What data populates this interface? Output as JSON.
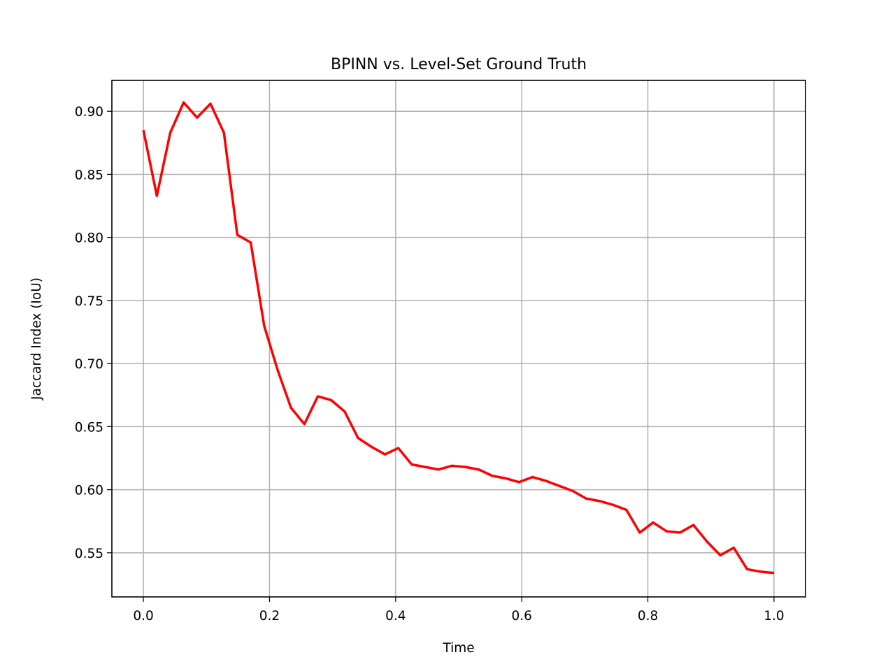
{
  "chart_data": {
    "type": "line",
    "title": "BPINN vs. Level-Set Ground Truth",
    "xlabel": "Time",
    "ylabel": "Jaccard Index (IoU)",
    "xlim": [
      -0.05,
      1.05
    ],
    "ylim": [
      0.515,
      0.9245
    ],
    "xticks": [
      0.0,
      0.2,
      0.4,
      0.6,
      0.8,
      1.0
    ],
    "xtick_labels": [
      "0.0",
      "0.2",
      "0.4",
      "0.6",
      "0.8",
      "1.0"
    ],
    "yticks": [
      0.55,
      0.6,
      0.65,
      0.7,
      0.75,
      0.8,
      0.85,
      0.9
    ],
    "ytick_labels": [
      "0.55",
      "0.60",
      "0.65",
      "0.70",
      "0.75",
      "0.80",
      "0.85",
      "0.90"
    ],
    "grid": true,
    "legend": "none",
    "series": [
      {
        "color": "#ff0000",
        "x": [
          0.0,
          0.0213,
          0.0426,
          0.0638,
          0.0851,
          0.1064,
          0.1277,
          0.1489,
          0.1702,
          0.1915,
          0.2128,
          0.234,
          0.2553,
          0.2766,
          0.2979,
          0.3191,
          0.3404,
          0.3617,
          0.383,
          0.4043,
          0.4255,
          0.4468,
          0.4681,
          0.4894,
          0.5106,
          0.5319,
          0.5532,
          0.5745,
          0.5957,
          0.617,
          0.6383,
          0.6596,
          0.6809,
          0.7021,
          0.7234,
          0.7447,
          0.766,
          0.7872,
          0.8085,
          0.8298,
          0.8511,
          0.8723,
          0.8936,
          0.9149,
          0.9362,
          0.9574,
          0.9787,
          1.0
        ],
        "y": [
          0.885,
          0.833,
          0.883,
          0.907,
          0.895,
          0.906,
          0.883,
          0.802,
          0.796,
          0.73,
          0.695,
          0.665,
          0.652,
          0.674,
          0.671,
          0.662,
          0.641,
          0.634,
          0.628,
          0.633,
          0.62,
          0.618,
          0.616,
          0.619,
          0.618,
          0.616,
          0.611,
          0.609,
          0.606,
          0.61,
          0.607,
          0.603,
          0.599,
          0.593,
          0.591,
          0.588,
          0.584,
          0.566,
          0.574,
          0.567,
          0.566,
          0.572,
          0.559,
          0.548,
          0.554,
          0.537,
          0.535,
          0.534
        ]
      }
    ]
  }
}
